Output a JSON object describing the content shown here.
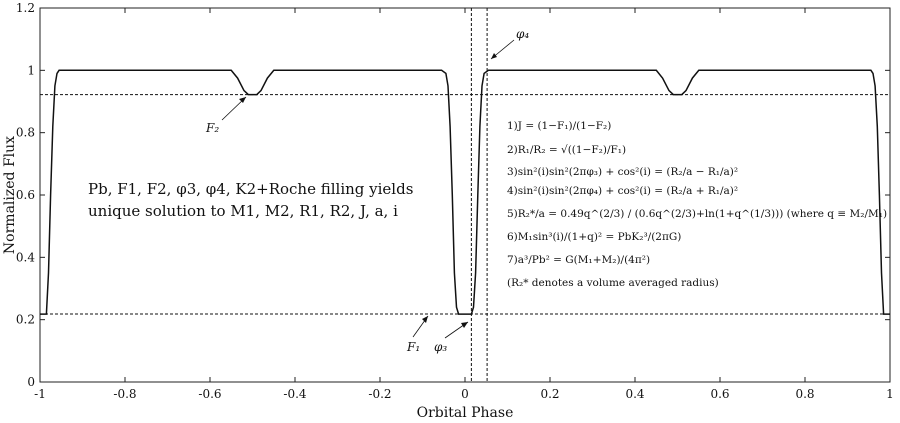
{
  "chart_data": {
    "type": "line",
    "xlabel": "Orbital Phase",
    "ylabel": "Normalized Flux",
    "xlim": [
      -1,
      1
    ],
    "ylim": [
      0,
      1.2
    ],
    "xticks": [
      "-1",
      "-0.8",
      "-0.6",
      "-0.4",
      "-0.2",
      "0",
      "0.2",
      "0.4",
      "0.6",
      "0.8",
      "1"
    ],
    "yticks": [
      "0",
      "0.2",
      "0.4",
      "0.6",
      "0.8",
      "1",
      "1.2"
    ],
    "series": [
      {
        "x": [
          -1.0,
          -0.985,
          -0.98,
          -0.975,
          -0.97,
          -0.965,
          -0.96,
          -0.955,
          -0.55,
          -0.535,
          -0.52,
          -0.51,
          -0.49,
          -0.48,
          -0.465,
          -0.45,
          -0.055,
          -0.045,
          -0.04,
          -0.035,
          -0.03,
          -0.025,
          -0.02,
          -0.015,
          0.015,
          0.02,
          0.025,
          0.03,
          0.035,
          0.04,
          0.045,
          0.055,
          0.45,
          0.465,
          0.48,
          0.49,
          0.51,
          0.52,
          0.535,
          0.55,
          0.955,
          0.96,
          0.965,
          0.97,
          0.975,
          0.98,
          0.985,
          1.0
        ],
        "y": [
          0.218,
          0.218,
          0.35,
          0.6,
          0.82,
          0.95,
          0.99,
          1.0,
          1.0,
          0.975,
          0.935,
          0.922,
          0.922,
          0.935,
          0.975,
          1.0,
          1.0,
          0.99,
          0.95,
          0.82,
          0.6,
          0.35,
          0.24,
          0.218,
          0.218,
          0.24,
          0.35,
          0.6,
          0.82,
          0.95,
          0.99,
          1.0,
          1.0,
          0.975,
          0.935,
          0.922,
          0.922,
          0.935,
          0.975,
          1.0,
          1.0,
          0.99,
          0.95,
          0.82,
          0.6,
          0.35,
          0.218,
          0.218
        ]
      }
    ],
    "hlines": [
      0.922,
      0.218
    ],
    "vlines": [
      0.015,
      0.052
    ],
    "annotations": {
      "f2": "F₂",
      "f1": "F₁",
      "phi3": "φ₃",
      "phi4": "φ₄"
    },
    "info_text": {
      "line1": "Pb, F1, F2, φ3, φ4, K2+Roche filling yields",
      "line2": "unique solution to M1, M2, R1, R2, J, a, i"
    },
    "equations": [
      "1)J = (1−F₁)/(1−F₂)",
      "2)R₁/R₂ = √((1−F₂)/F₁)",
      "3)sin²(i)sin²(2πφ₃) + cos²(i) = (R₂/a − R₁/a)²",
      "4)sin²(i)sin²(2πφ₄) + cos²(i) = (R₂/a + R₁/a)²",
      "5)R₂*/a = 0.49q^(2/3) / (0.6q^(2/3)+ln(1+q^(1/3)))  (where q ≡ M₂/M₁)",
      "6)M₁sin³(i)/(1+q)² = PbK₂³/(2πG)",
      "7)a³/Pb² = G(M₁+M₂)/(4π²)",
      "(R₂* denotes a volume averaged radius)"
    ]
  }
}
